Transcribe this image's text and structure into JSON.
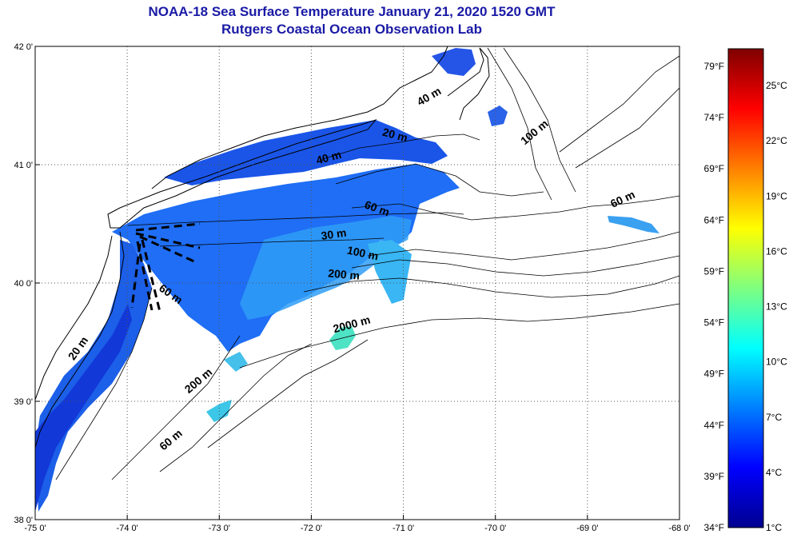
{
  "title": "NOAA-18 Sea Surface Temperature January 21, 2020 1520 GMT",
  "subtitle": "Rutgers Coastal Ocean Observation Lab",
  "map": {
    "lon_ticks": [
      {
        "value": -75,
        "label": "-75 0'"
      },
      {
        "value": -74,
        "label": "-74 0'"
      },
      {
        "value": -73,
        "label": "-73 0'"
      },
      {
        "value": -72,
        "label": "-72 0'"
      },
      {
        "value": -71,
        "label": "-71 0'"
      },
      {
        "value": -70,
        "label": "-70 0'"
      },
      {
        "value": -69,
        "label": "-69 0'"
      },
      {
        "value": -68,
        "label": "-68 0'"
      }
    ],
    "lat_ticks": [
      {
        "value": 42,
        "label": "42 0'"
      },
      {
        "value": 41,
        "label": "41 0'"
      },
      {
        "value": 40,
        "label": "40 0'"
      },
      {
        "value": 39,
        "label": "39 0'"
      },
      {
        "value": 38,
        "label": "38 0'"
      }
    ],
    "lon_range": [
      -75,
      -68
    ],
    "lat_range": [
      38,
      42
    ],
    "grid": "dotted",
    "contour_labels": [
      {
        "text": "20 m",
        "lon": -71.1,
        "lat": 41.22,
        "angle": 15
      },
      {
        "text": "40 m",
        "lon": -70.7,
        "lat": 41.55,
        "angle": -30
      },
      {
        "text": "40 m",
        "lon": -71.8,
        "lat": 41.03,
        "angle": -15
      },
      {
        "text": "100 m",
        "lon": -69.55,
        "lat": 41.25,
        "angle": -40
      },
      {
        "text": "60 m",
        "lon": -68.6,
        "lat": 40.68,
        "angle": -25
      },
      {
        "text": "60 m",
        "lon": -71.3,
        "lat": 40.6,
        "angle": 20
      },
      {
        "text": "30 m",
        "lon": -71.75,
        "lat": 40.38,
        "angle": -8
      },
      {
        "text": "100 m",
        "lon": -71.45,
        "lat": 40.22,
        "angle": 12
      },
      {
        "text": "200 m",
        "lon": -71.65,
        "lat": 40.04,
        "angle": 5
      },
      {
        "text": "2000 m",
        "lon": -71.55,
        "lat": 39.62,
        "angle": -15
      },
      {
        "text": "60 m",
        "lon": -73.55,
        "lat": 39.88,
        "angle": 35
      },
      {
        "text": "20 m",
        "lon": -74.5,
        "lat": 39.43,
        "angle": -55
      },
      {
        "text": "200 m",
        "lon": -73.2,
        "lat": 39.15,
        "angle": -40
      },
      {
        "text": "60 m",
        "lon": -73.5,
        "lat": 38.65,
        "angle": -40
      }
    ]
  },
  "colorbar": {
    "fahrenheit_labels": [
      "79°F",
      "74°F",
      "69°F",
      "64°F",
      "59°F",
      "54°F",
      "49°F",
      "44°F",
      "39°F",
      "34°F"
    ],
    "celsius_labels": [
      "25°C",
      "22°C",
      "19°C",
      "16°C",
      "13°C",
      "10°C",
      "7°C",
      "4°C",
      "1°C"
    ],
    "colors": [
      "#00008f",
      "#0000ff",
      "#007fff",
      "#00ffff",
      "#7fff7f",
      "#ffff00",
      "#ff7f00",
      "#ff0000",
      "#7f0000"
    ]
  }
}
